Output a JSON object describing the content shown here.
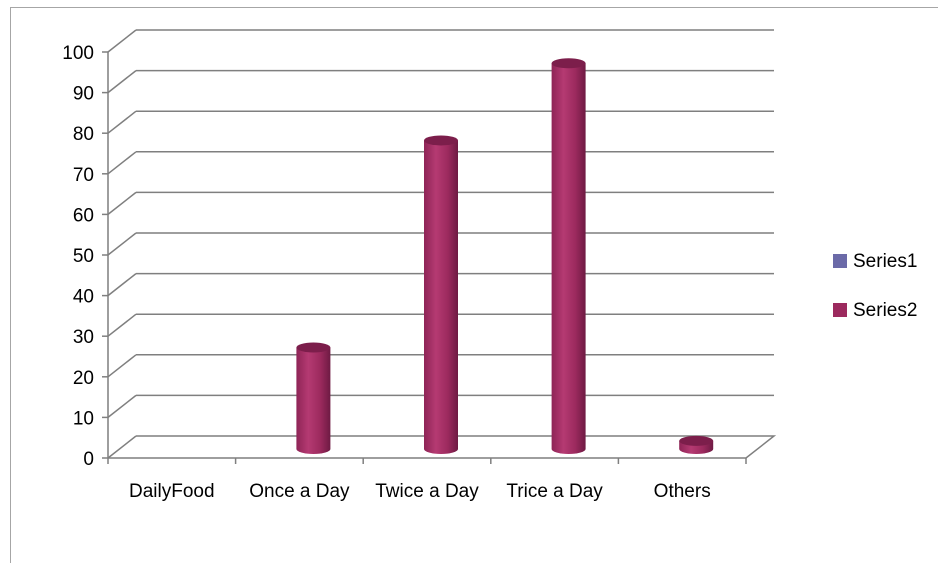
{
  "chart_data": {
    "type": "bar",
    "categories": [
      "DailyFood",
      "Once a Day",
      "Twice a Day",
      "Trice a Day",
      "Others"
    ],
    "series": [
      {
        "name": "Series1",
        "values": [
          0,
          0,
          0,
          0,
          0
        ],
        "color": "#6b6aa8"
      },
      {
        "name": "Series2",
        "values": [
          0,
          25,
          76,
          95,
          2
        ],
        "color": "#9c2a5e"
      }
    ],
    "yticks": [
      0,
      10,
      20,
      30,
      40,
      50,
      60,
      70,
      80,
      90,
      100
    ],
    "ylim": [
      0,
      100
    ],
    "grid": true,
    "legend": "right",
    "style": "3d-cylinder"
  }
}
